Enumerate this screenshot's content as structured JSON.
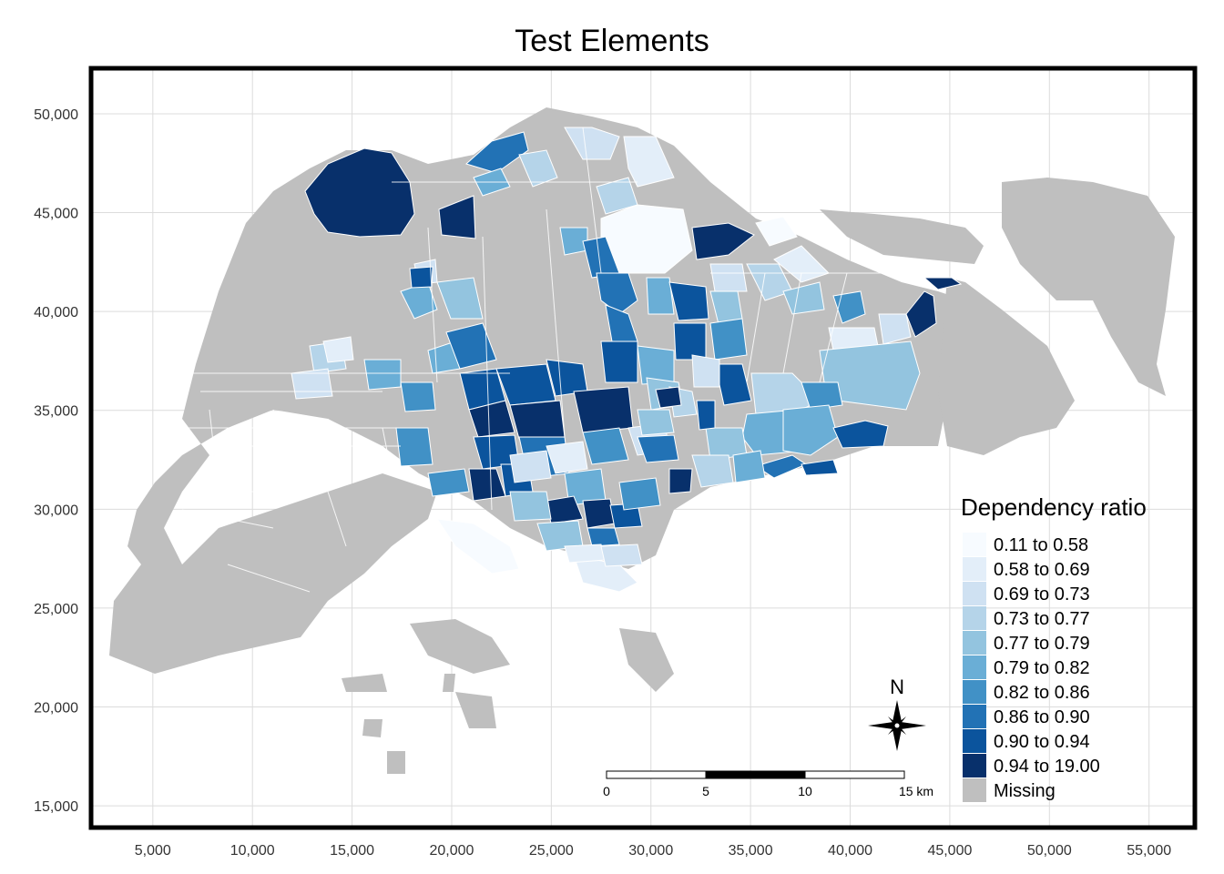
{
  "title": "Test Elements",
  "colors": {
    "land": "#bfbfbf",
    "frame": "#000000",
    "grid": "#dcdcdc",
    "boundary": "#ffffff"
  },
  "axes": {
    "x_ticks": [
      "5,000",
      "10,000",
      "15,000",
      "20,000",
      "25,000",
      "30,000",
      "35,000",
      "40,000",
      "45,000",
      "50,000",
      "55,000"
    ],
    "x_values": [
      5000,
      10000,
      15000,
      20000,
      25000,
      30000,
      35000,
      40000,
      45000,
      50000,
      55000
    ],
    "y_ticks": [
      "15,000",
      "20,000",
      "25,000",
      "30,000",
      "35,000",
      "40,000",
      "45,000",
      "50,000"
    ],
    "y_values": [
      15000,
      20000,
      25000,
      30000,
      35000,
      40000,
      45000,
      50000
    ],
    "xlim": [
      1900,
      57300
    ],
    "ylim": [
      13900,
      52300
    ]
  },
  "legend": {
    "title": "Dependency ratio",
    "classes": [
      {
        "label": "0.11 to 0.58",
        "color": "#f7fbff"
      },
      {
        "label": "0.58 to 0.69",
        "color": "#e3eef9"
      },
      {
        "label": "0.69 to 0.73",
        "color": "#cfe1f2"
      },
      {
        "label": "0.73 to 0.77",
        "color": "#b5d4e9"
      },
      {
        "label": "0.77 to 0.79",
        "color": "#93c4df"
      },
      {
        "label": "0.79 to 0.82",
        "color": "#6aaed6"
      },
      {
        "label": "0.82 to 0.86",
        "color": "#4191c6"
      },
      {
        "label": "0.86 to 0.90",
        "color": "#2272b5"
      },
      {
        "label": "0.90 to 0.94",
        "color": "#0b549d"
      },
      {
        "label": "0.94 to 19.00",
        "color": "#08306b"
      },
      {
        "label": "Missing",
        "color": "#bfbfbf"
      }
    ]
  },
  "scale_bar": {
    "labels": [
      "0",
      "5",
      "10",
      "15 km"
    ]
  },
  "compass": {
    "label": "N"
  }
}
